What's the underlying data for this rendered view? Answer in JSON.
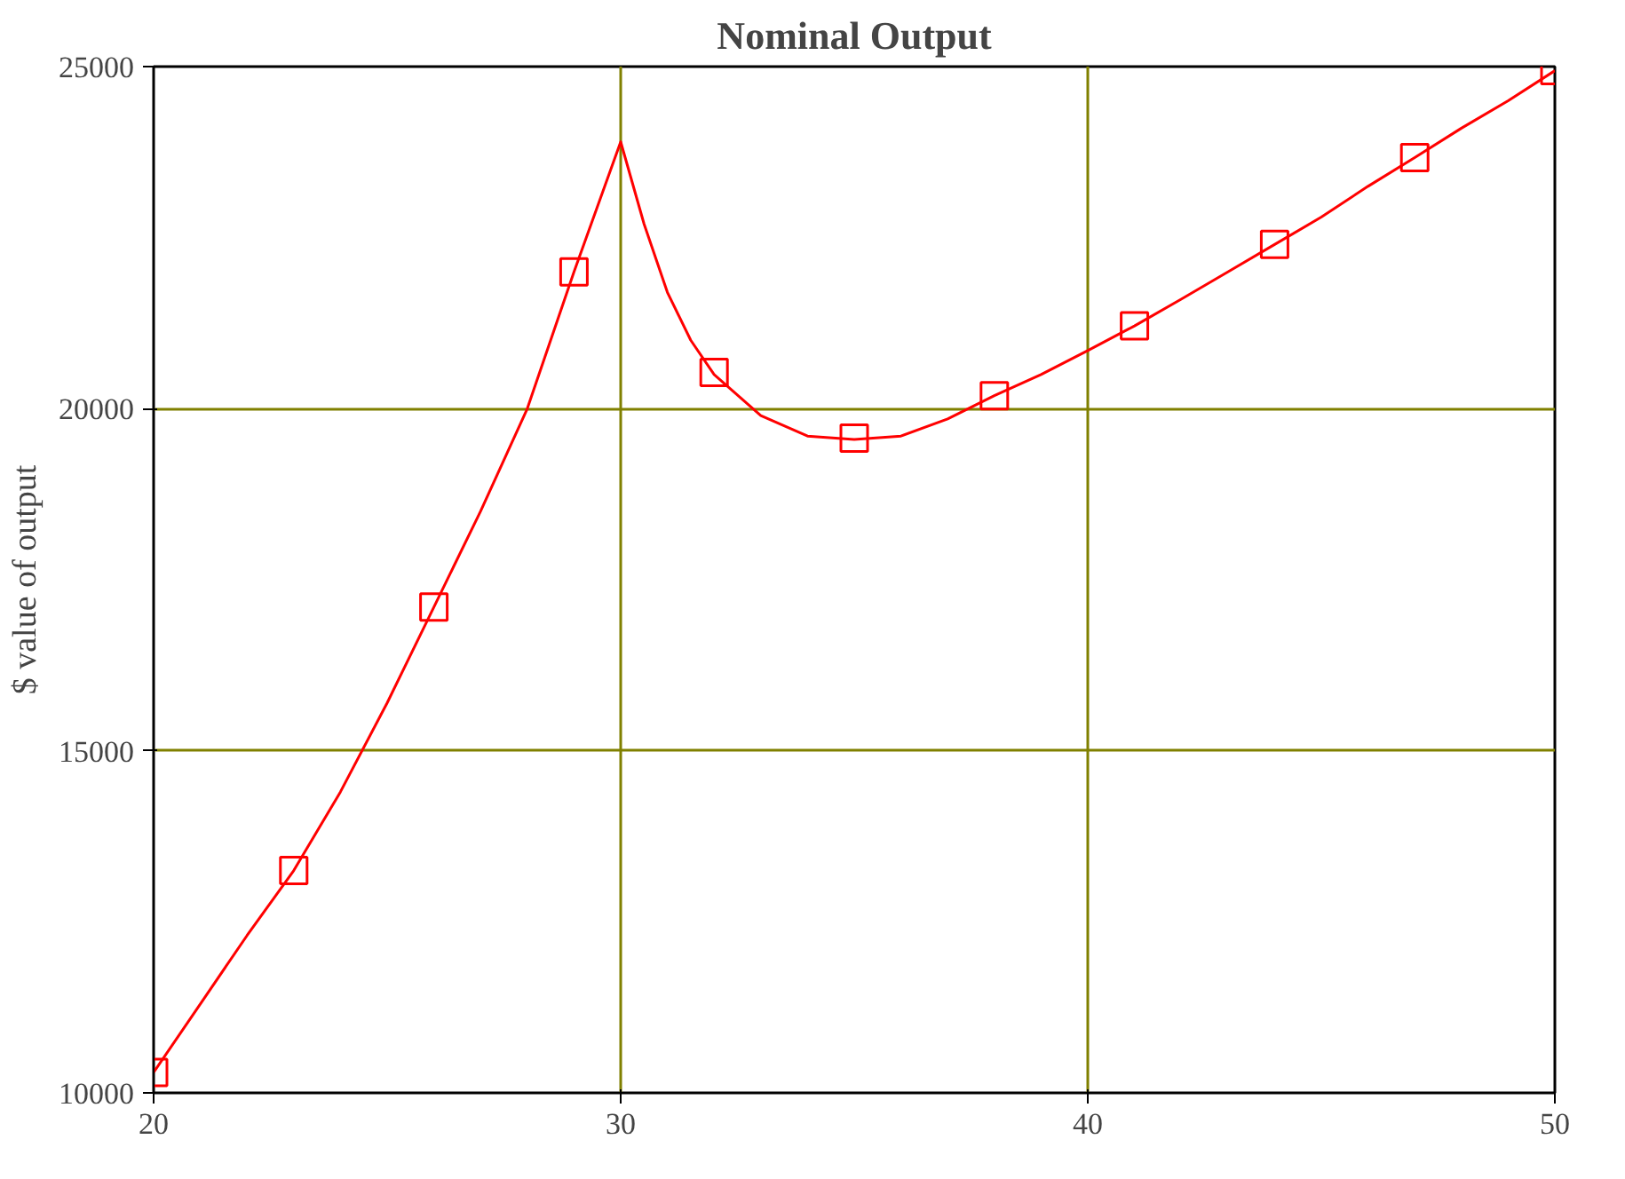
{
  "chart_data": {
    "type": "line",
    "title": "Nominal Output",
    "ylabel": "$ value of output",
    "xlim": [
      20,
      50
    ],
    "xticks": [
      20,
      30,
      40,
      50
    ],
    "ylim": [
      10000,
      25000
    ],
    "yticks": [
      10000,
      15000,
      20000,
      25000
    ],
    "grid": true,
    "series": [
      {
        "color": "#ff0000",
        "line_style": "solid",
        "x": [
          20,
          21,
          22,
          23,
          24,
          25,
          26,
          27,
          28,
          29,
          30,
          30.5,
          31,
          31.5,
          32,
          33,
          34,
          35,
          36,
          37,
          38,
          39,
          40,
          41,
          42,
          43,
          44,
          45,
          46,
          47,
          48,
          49,
          50
        ],
        "values": [
          10300,
          11300,
          12300,
          13250,
          14400,
          15700,
          17100,
          18500,
          20000,
          22000,
          23900,
          22700,
          21700,
          21000,
          20500,
          19900,
          19600,
          19550,
          19600,
          19850,
          20190,
          20500,
          20850,
          21210,
          21600,
          22000,
          22400,
          22800,
          23250,
          23670,
          24100,
          24500,
          24940
        ]
      },
      {
        "type": "scatter",
        "color": "#ff0000",
        "marker": "square",
        "x": [
          20,
          23,
          26,
          29,
          32,
          35,
          38,
          41,
          44,
          47,
          50
        ],
        "values": [
          10300,
          13250,
          17100,
          22000,
          20530,
          19570,
          20190,
          21210,
          22400,
          23670,
          24940
        ]
      }
    ]
  }
}
